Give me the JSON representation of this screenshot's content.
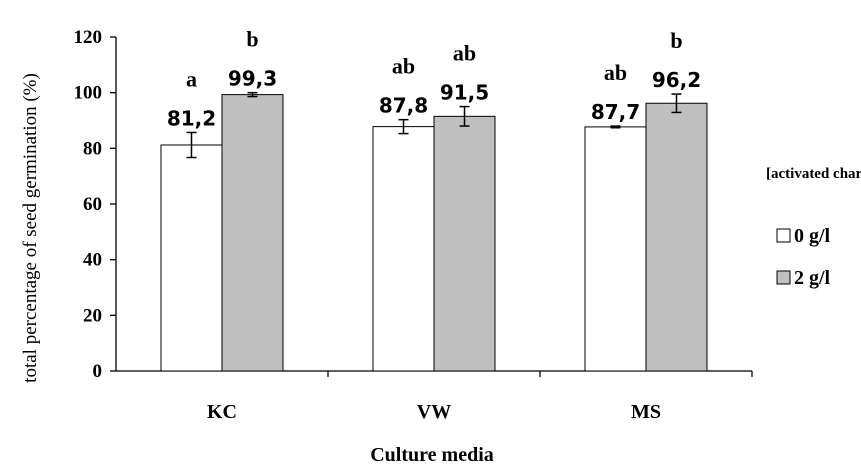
{
  "chart_data": {
    "type": "bar",
    "xlabel": "Culture media",
    "ylabel": "total percentage of seed germination (%)",
    "ylim": [
      0,
      120
    ],
    "yticks": [
      "0",
      "20",
      "40",
      "60",
      "80",
      "100",
      "120"
    ],
    "categories": [
      "KC",
      "VW",
      "MS"
    ],
    "legend_title": "[activated charcoal]",
    "legend_placement": "right",
    "grid": false,
    "series": [
      {
        "name": "0 g/l",
        "color": "#ffffff",
        "values": [
          81.2,
          87.8,
          87.7
        ],
        "errors": [
          4.5,
          2.5,
          0.3
        ],
        "value_labels": [
          "81,2",
          "87,8",
          "87,7"
        ],
        "significance": [
          "a",
          "ab",
          "ab"
        ]
      },
      {
        "name": "2 g/l",
        "color": "#c0c0c0",
        "values": [
          99.3,
          91.5,
          96.2
        ],
        "errors": [
          0.7,
          3.5,
          3.3
        ],
        "value_labels": [
          "99,3",
          "91,5",
          "96,2"
        ],
        "significance": [
          "b",
          "ab",
          "b"
        ]
      }
    ]
  }
}
